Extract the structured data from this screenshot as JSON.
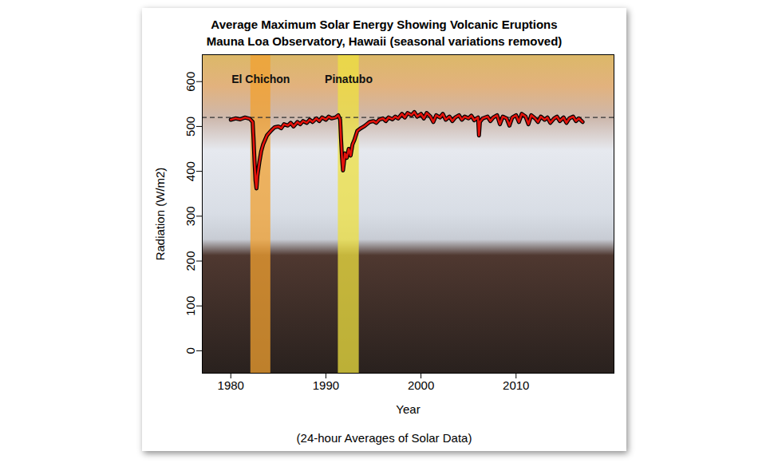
{
  "chart_data": {
    "type": "line",
    "title": "Average Maximum Solar Energy Showing Volcanic Eruptions",
    "subtitle": "Mauna Loa Observatory, Hawaii (seasonal variations removed)",
    "x_label": "Year",
    "y_label": "Radiation (W/m2)",
    "caption": "(24-hour Averages of Solar Data)",
    "color": "#e3120b",
    "x": [
      1980.0,
      1980.5,
      1981.0,
      1981.5,
      1982.0,
      1982.3,
      1982.4,
      1982.5,
      1982.6,
      1982.7,
      1982.8,
      1983.0,
      1983.2,
      1983.4,
      1983.6,
      1983.8,
      1984.0,
      1984.3,
      1984.6,
      1985.0,
      1985.3,
      1985.6,
      1986.0,
      1986.3,
      1986.6,
      1987.0,
      1987.3,
      1987.6,
      1988.0,
      1988.3,
      1988.6,
      1989.0,
      1989.3,
      1989.6,
      1990.0,
      1990.3,
      1990.6,
      1991.0,
      1991.3,
      1991.5,
      1991.6,
      1991.7,
      1991.8,
      1991.9,
      1992.0,
      1992.2,
      1992.4,
      1992.6,
      1992.8,
      1993.0,
      1993.3,
      1993.6,
      1994.0,
      1994.3,
      1994.6,
      1995.0,
      1995.3,
      1995.6,
      1996.0,
      1996.3,
      1996.6,
      1997.0,
      1997.3,
      1997.6,
      1998.0,
      1998.3,
      1998.6,
      1999.0,
      1999.3,
      1999.6,
      2000.0,
      2000.3,
      2000.6,
      2001.0,
      2001.3,
      2001.6,
      2002.0,
      2002.3,
      2002.6,
      2003.0,
      2003.3,
      2003.6,
      2004.0,
      2004.3,
      2004.6,
      2005.0,
      2005.3,
      2005.6,
      2006.0,
      2006.1,
      2006.2,
      2006.5,
      2007.0,
      2007.3,
      2007.6,
      2008.0,
      2008.3,
      2008.6,
      2009.0,
      2009.3,
      2009.6,
      2010.0,
      2010.3,
      2010.6,
      2011.0,
      2011.3,
      2011.6,
      2012.0,
      2012.3,
      2012.6,
      2013.0,
      2013.3,
      2013.6,
      2014.0,
      2014.3,
      2014.6,
      2015.0,
      2015.3,
      2015.6,
      2016.0,
      2016.3,
      2016.6,
      2017.0
    ],
    "values": [
      515,
      518,
      516,
      520,
      517,
      510,
      470,
      420,
      380,
      362,
      390,
      420,
      445,
      460,
      470,
      480,
      485,
      492,
      498,
      500,
      496,
      505,
      502,
      508,
      500,
      510,
      505,
      512,
      508,
      515,
      510,
      518,
      512,
      520,
      515,
      522,
      518,
      520,
      525,
      515,
      470,
      430,
      402,
      420,
      440,
      430,
      450,
      435,
      460,
      470,
      490,
      495,
      500,
      505,
      510,
      512,
      508,
      515,
      518,
      512,
      520,
      516,
      522,
      518,
      528,
      520,
      530,
      525,
      532,
      522,
      528,
      518,
      530,
      522,
      510,
      525,
      520,
      528,
      515,
      522,
      512,
      520,
      525,
      515,
      522,
      518,
      524,
      514,
      520,
      480,
      510,
      518,
      522,
      512,
      520,
      525,
      505,
      522,
      518,
      502,
      520,
      525,
      510,
      528,
      522,
      505,
      525,
      518,
      510,
      522,
      515,
      520,
      508,
      518,
      522,
      512,
      520,
      508,
      518,
      522,
      512,
      518,
      510
    ],
    "reference_line": {
      "value": 520,
      "line_style": "dashed"
    },
    "annotations": [
      {
        "label": "El Chichon",
        "x1": 1982.1,
        "x2": 1984.2,
        "color": "#f0a030"
      },
      {
        "label": "Pinatubo",
        "x1": 1991.3,
        "x2": 1993.5,
        "color": "#eee040"
      }
    ],
    "xlim": [
      1977,
      2020.3
    ],
    "ylim": [
      -50,
      660
    ],
    "xticks": [
      1980,
      1990,
      2000,
      2010
    ],
    "yticks": [
      0,
      100,
      200,
      300,
      400,
      500,
      600
    ],
    "grid": false
  }
}
